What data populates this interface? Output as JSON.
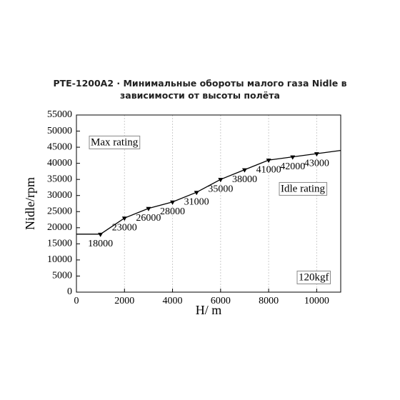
{
  "chart_data": {
    "type": "line",
    "title": "PTE-1200A2 · Минимальные обороты малого газа Nidle в зависимости от высоты полёта",
    "x_label": "H/ m",
    "y_label": "Nidle/rpm",
    "x": [
      0,
      1000,
      2000,
      3000,
      4000,
      5000,
      6000,
      7000,
      8000,
      9000,
      10000,
      11000
    ],
    "series": [
      {
        "name": "Nidle",
        "color": "#000000",
        "values": [
          18000,
          18000,
          23000,
          26000,
          28000,
          31000,
          35000,
          38000,
          41000,
          42000,
          43000,
          44000
        ]
      }
    ],
    "xlim": [
      0,
      11000
    ],
    "xticks": [
      0,
      2000,
      4000,
      6000,
      8000,
      10000
    ],
    "ylim": [
      0,
      55000
    ],
    "yticks": [
      0,
      5000,
      10000,
      15000,
      20000,
      25000,
      30000,
      35000,
      40000,
      45000,
      50000,
      55000
    ],
    "grid": true,
    "annotations": [
      "Max rating",
      "Idle rating",
      "120kgf"
    ]
  }
}
